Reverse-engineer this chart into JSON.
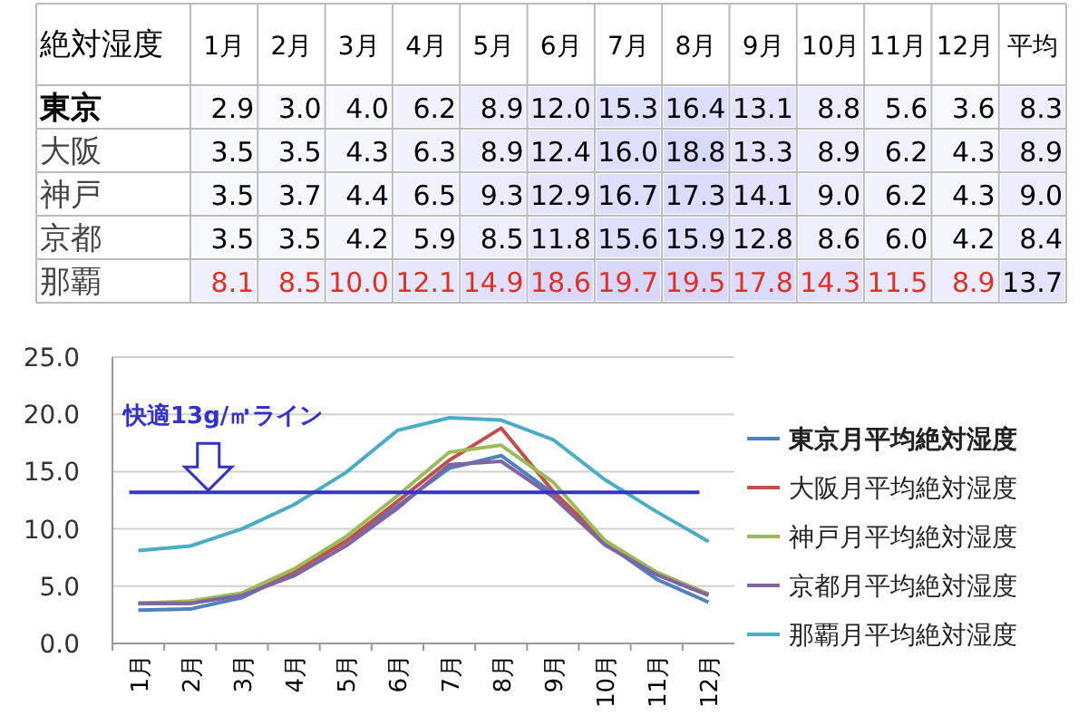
{
  "chart_data": [
    {
      "type": "heatmap",
      "title": "絶対湿度",
      "categories": [
        "1月",
        "2月",
        "3月",
        "4月",
        "5月",
        "6月",
        "7月",
        "8月",
        "9月",
        "10月",
        "11月",
        "12月",
        "平均"
      ],
      "y_categories": [
        "東京",
        "大阪",
        "神戸",
        "京都",
        "那覇"
      ],
      "cell_labels": [
        [
          "2.9",
          "3.0",
          "4.0",
          "6.2",
          "8.9",
          "12.0",
          "15.3",
          "16.4",
          "13.1",
          "8.8",
          "5.6",
          "3.6",
          "8.3"
        ],
        [
          "3.5",
          "3.5",
          "4.3",
          "6.3",
          "8.9",
          "12.4",
          "16.0",
          "18.8",
          "13.3",
          "8.9",
          "6.2",
          "4.3",
          "8.9"
        ],
        [
          "3.5",
          "3.7",
          "4.4",
          "6.5",
          "9.3",
          "12.9",
          "16.7",
          "17.3",
          "14.1",
          "9.0",
          "6.2",
          "4.3",
          "9.0"
        ],
        [
          "3.5",
          "3.5",
          "4.2",
          "5.9",
          "8.5",
          "11.8",
          "15.6",
          "15.9",
          "12.8",
          "8.6",
          "6.0",
          "4.2",
          "8.4"
        ],
        [
          "8.1",
          "8.5",
          "10.0",
          "12.1",
          "14.9",
          "18.6",
          "19.7",
          "19.5",
          "17.8",
          "14.3",
          "11.5",
          "8.9",
          "13.7"
        ]
      ],
      "cells": [
        [
          2.9,
          3.0,
          4.0,
          6.2,
          8.9,
          12.0,
          15.3,
          16.4,
          13.1,
          8.8,
          5.6,
          3.6,
          8.3
        ],
        [
          3.5,
          3.5,
          4.3,
          6.3,
          8.9,
          12.4,
          16.0,
          18.8,
          13.3,
          8.9,
          6.2,
          4.3,
          8.9
        ],
        [
          3.5,
          3.7,
          4.4,
          6.5,
          9.3,
          12.9,
          16.7,
          17.3,
          14.1,
          9.0,
          6.2,
          4.3,
          9.0
        ],
        [
          3.5,
          3.5,
          4.2,
          5.9,
          8.5,
          11.8,
          15.6,
          15.9,
          12.8,
          8.6,
          6.0,
          4.2,
          8.4
        ],
        [
          8.1,
          8.5,
          10.0,
          12.1,
          14.9,
          18.6,
          19.7,
          19.5,
          17.8,
          14.3,
          11.5,
          8.9,
          13.7
        ]
      ]
    },
    {
      "type": "line",
      "categories": [
        "1月",
        "2月",
        "3月",
        "4月",
        "5月",
        "6月",
        "7月",
        "8月",
        "9月",
        "10月",
        "11月",
        "12月"
      ],
      "series": [
        {
          "name": "東京月平均絶対湿度",
          "color": "#4f81bd",
          "values": [
            2.9,
            3.0,
            4.0,
            6.2,
            8.9,
            12.0,
            15.3,
            16.4,
            13.1,
            8.8,
            5.6,
            3.6
          ]
        },
        {
          "name": "大阪月平均絶対湿度",
          "color": "#c0504d",
          "values": [
            3.5,
            3.5,
            4.3,
            6.3,
            8.9,
            12.4,
            16.0,
            18.8,
            13.3,
            8.9,
            6.2,
            4.3
          ]
        },
        {
          "name": "神戸月平均絶対湿度",
          "color": "#9bbb59",
          "values": [
            3.5,
            3.7,
            4.4,
            6.5,
            9.3,
            12.9,
            16.7,
            17.3,
            14.1,
            9.0,
            6.2,
            4.3
          ]
        },
        {
          "name": "京都月平均絶対湿度",
          "color": "#8064a2",
          "values": [
            3.5,
            3.5,
            4.2,
            5.9,
            8.5,
            11.8,
            15.6,
            15.9,
            12.8,
            8.6,
            6.0,
            4.2
          ]
        },
        {
          "name": "那覇月平均絶対湿度",
          "color": "#4bacc6",
          "values": [
            8.1,
            8.5,
            10.0,
            12.1,
            14.9,
            18.6,
            19.7,
            19.5,
            17.8,
            14.3,
            11.5,
            8.9
          ]
        }
      ],
      "ylim": [
        0,
        25
      ],
      "yticks": [
        {
          "value": 0,
          "label": "0.0"
        },
        {
          "value": 5,
          "label": "5.0"
        },
        {
          "value": 10,
          "label": "10.0"
        },
        {
          "value": 15,
          "label": "15.0"
        },
        {
          "value": 20,
          "label": "20.0"
        },
        {
          "value": 25,
          "label": "25.0"
        }
      ],
      "grid": "y",
      "legend": "right",
      "ref_lines": [
        {
          "axis": "y",
          "value": 13.2,
          "label": "快適13g/㎥ライン",
          "color": "#3333cc"
        }
      ]
    }
  ]
}
